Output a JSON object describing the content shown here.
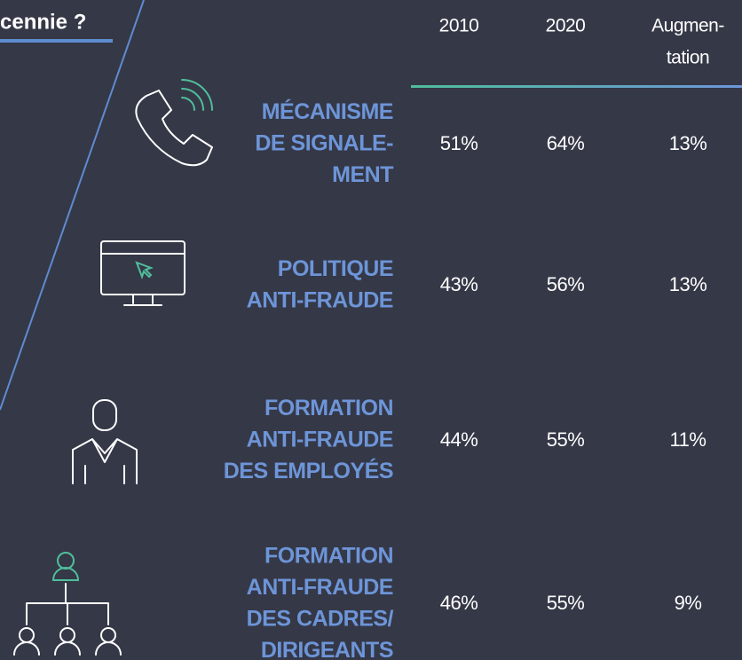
{
  "header": {
    "title": "cennie ?",
    "columns": [
      [
        "2010"
      ],
      [
        "2020"
      ],
      [
        "Augmen-",
        "tation"
      ]
    ]
  },
  "table": {
    "rows": [
      {
        "label": [
          "MÉCANISME",
          "DE SIGNALE-",
          "MENT"
        ],
        "values": [
          "51%",
          "64%",
          "13%"
        ]
      },
      {
        "label": [
          "POLITIQUE",
          "ANTI-FRAUDE"
        ],
        "values": [
          "43%",
          "56%",
          "13%"
        ]
      },
      {
        "label": [
          "FORMATION",
          "ANTI-FRAUDE",
          "DES EMPLOYÉS"
        ],
        "values": [
          "44%",
          "55%",
          "11%"
        ]
      },
      {
        "label": [
          "FORMATION",
          "ANTI-FRAUDE",
          "DES CADRES/",
          "DIRIGEANTS"
        ],
        "values": [
          "46%",
          "55%",
          "9%"
        ]
      }
    ]
  }
}
